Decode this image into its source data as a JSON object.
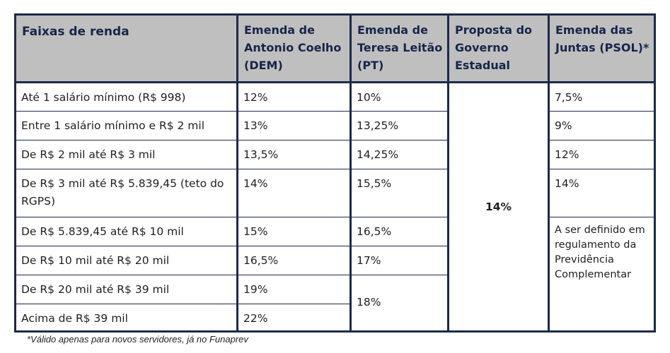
{
  "header": {
    "col0": "Faixas de renda",
    "col1": "Emenda de Antonio Coelho (DEM)",
    "col2": "Emenda de Teresa Leitão (PT)",
    "col3": "Proposta do Governo Estadual",
    "col4": "Emenda das Juntas (PSOL)*"
  },
  "rows": [
    {
      "faixa": "Até 1 salário mínimo (R$ 998)",
      "dem": "12%",
      "pt": "10%",
      "psol": "7,5%"
    },
    {
      "faixa": "Entre 1 salário mínimo e R$ 2 mil",
      "dem": "13%",
      "pt": "13,25%",
      "psol": "9%"
    },
    {
      "faixa": "De R$ 2 mil até R$ 3 mil",
      "dem": "13,5%",
      "pt": "14,25%",
      "psol": "12%"
    },
    {
      "faixa": "De R$ 3 mil até R$ 5.839,45 (teto do RGPS)",
      "dem": "14%",
      "pt": "15,5%",
      "psol": "14%"
    },
    {
      "faixa": "De R$ 5.839,45 até R$ 10 mil",
      "dem": "15%",
      "pt": "16,5%"
    },
    {
      "faixa": "De R$ 10 mil até R$ 20 mil",
      "dem": "16,5%",
      "pt": "17%"
    },
    {
      "faixa": "De R$ 20 mil até R$ 39 mil",
      "dem": "19%"
    },
    {
      "faixa": "Acima de R$ 39 mil",
      "dem": "22%"
    }
  ],
  "merged": {
    "governo": "14%",
    "pt_top": "18%",
    "psol_rest": "A ser definido em regulamento da Previdência Complementar"
  },
  "footnote": "*Válido apenas para novos servidores, já no Funaprev",
  "colors": {
    "border": "#1c2a4a",
    "header_bg": "#bfbfbf",
    "header_text": "#16254a"
  }
}
